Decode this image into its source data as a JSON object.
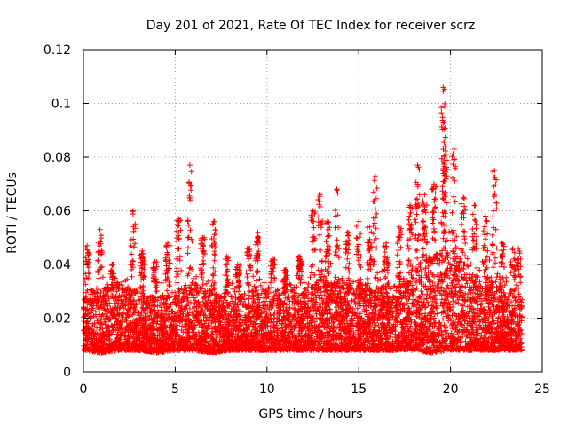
{
  "chart_data": {
    "type": "scatter",
    "title": "Day 201 of 2021, Rate Of TEC Index for receiver scrz",
    "xlabel": "GPS time / hours",
    "ylabel": "ROTI / TECUs",
    "xlim": [
      0,
      25
    ],
    "ylim": [
      0,
      0.12
    ],
    "x_ticks": [
      "0",
      "5",
      "10",
      "15",
      "20",
      "25"
    ],
    "y_ticks": [
      "0",
      "0.02",
      "0.04",
      "0.06",
      "0.08",
      "0.1",
      "0.12"
    ],
    "grid": true,
    "marker": "+",
    "color": "#ff0000",
    "series": [
      {
        "name": "ROTI",
        "baseline_envelope": {
          "x": [
            0,
            1,
            2,
            3,
            4,
            5,
            6,
            7,
            8,
            9,
            10,
            11,
            12,
            13,
            14,
            15,
            16,
            17,
            18,
            19,
            20,
            21,
            22,
            23,
            24
          ],
          "typical_max": [
            0.03,
            0.032,
            0.034,
            0.03,
            0.028,
            0.03,
            0.034,
            0.03,
            0.028,
            0.03,
            0.032,
            0.03,
            0.034,
            0.036,
            0.034,
            0.034,
            0.032,
            0.032,
            0.04,
            0.044,
            0.045,
            0.042,
            0.036,
            0.03,
            0.028
          ],
          "typical_min": [
            0.008,
            0.007,
            0.008,
            0.008,
            0.007,
            0.008,
            0.008,
            0.007,
            0.008,
            0.008,
            0.008,
            0.008,
            0.008,
            0.008,
            0.008,
            0.008,
            0.008,
            0.008,
            0.008,
            0.007,
            0.008,
            0.008,
            0.008,
            0.008,
            0.008
          ]
        },
        "spikes": [
          {
            "x": 0.2,
            "y": 0.047
          },
          {
            "x": 0.9,
            "y": 0.053
          },
          {
            "x": 1.6,
            "y": 0.04
          },
          {
            "x": 2.7,
            "y": 0.06
          },
          {
            "x": 3.2,
            "y": 0.045
          },
          {
            "x": 3.9,
            "y": 0.041
          },
          {
            "x": 4.6,
            "y": 0.048
          },
          {
            "x": 5.2,
            "y": 0.057
          },
          {
            "x": 5.8,
            "y": 0.077
          },
          {
            "x": 6.5,
            "y": 0.05
          },
          {
            "x": 7.1,
            "y": 0.056
          },
          {
            "x": 7.8,
            "y": 0.043
          },
          {
            "x": 8.4,
            "y": 0.04
          },
          {
            "x": 9.0,
            "y": 0.046
          },
          {
            "x": 9.5,
            "y": 0.052
          },
          {
            "x": 10.3,
            "y": 0.042
          },
          {
            "x": 11.0,
            "y": 0.038
          },
          {
            "x": 11.8,
            "y": 0.043
          },
          {
            "x": 12.5,
            "y": 0.06
          },
          {
            "x": 12.9,
            "y": 0.066
          },
          {
            "x": 13.3,
            "y": 0.056
          },
          {
            "x": 13.8,
            "y": 0.068
          },
          {
            "x": 14.4,
            "y": 0.052
          },
          {
            "x": 15.0,
            "y": 0.056
          },
          {
            "x": 15.6,
            "y": 0.054
          },
          {
            "x": 15.9,
            "y": 0.073
          },
          {
            "x": 16.5,
            "y": 0.048
          },
          {
            "x": 17.2,
            "y": 0.054
          },
          {
            "x": 17.8,
            "y": 0.062
          },
          {
            "x": 18.2,
            "y": 0.077
          },
          {
            "x": 18.6,
            "y": 0.066
          },
          {
            "x": 19.1,
            "y": 0.07
          },
          {
            "x": 19.6,
            "y": 0.106
          },
          {
            "x": 19.65,
            "y": 0.093
          },
          {
            "x": 19.7,
            "y": 0.084
          },
          {
            "x": 20.2,
            "y": 0.083
          },
          {
            "x": 20.7,
            "y": 0.065
          },
          {
            "x": 21.3,
            "y": 0.062
          },
          {
            "x": 21.9,
            "y": 0.058
          },
          {
            "x": 22.4,
            "y": 0.075
          },
          {
            "x": 22.8,
            "y": 0.048
          },
          {
            "x": 23.4,
            "y": 0.046
          },
          {
            "x": 23.7,
            "y": 0.046
          }
        ]
      }
    ]
  }
}
